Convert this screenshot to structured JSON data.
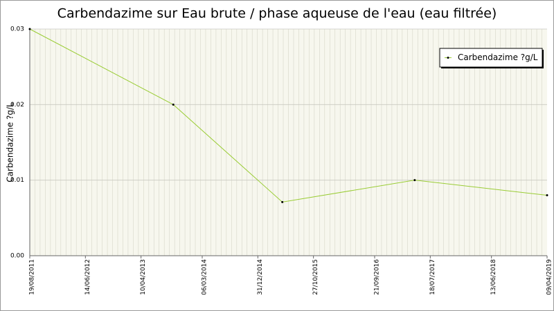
{
  "chart_data": {
    "type": "line",
    "title": "Carbendazime sur Eau brute / phase aqueuse de l'eau (eau filtrée)",
    "y_label": "Carbendazime ?g/L",
    "x": [
      "2011-08-19",
      "2013-10-01",
      "2015-05-12",
      "2017-04-25",
      "2019-04-09"
    ],
    "series": [
      {
        "name": "Carbendazime ?g/L",
        "color": "#99cc33",
        "values": [
          0.03,
          0.02,
          0.0071,
          0.01,
          0.008
        ]
      }
    ],
    "xlim": [
      "2011-08-19",
      "2019-04-09"
    ],
    "xticks": [
      {
        "value": "2011-08-19",
        "label": "19/08/2011"
      },
      {
        "value": "2012-06-14",
        "label": "14/06/2012"
      },
      {
        "value": "2013-04-10",
        "label": "10/04/2013"
      },
      {
        "value": "2014-03-06",
        "label": "06/03/2014"
      },
      {
        "value": "2014-12-31",
        "label": "31/12/2014"
      },
      {
        "value": "2015-10-27",
        "label": "27/10/2015"
      },
      {
        "value": "2016-09-21",
        "label": "21/09/2016"
      },
      {
        "value": "2017-07-18",
        "label": "18/07/2017"
      },
      {
        "value": "2018-06-13",
        "label": "13/06/2018"
      },
      {
        "value": "2019-04-09",
        "label": "09/04/2019"
      }
    ],
    "ylim": [
      0,
      0.03
    ],
    "yticks": [
      {
        "value": 0,
        "label": "0.00"
      },
      0.01,
      0.02,
      0.03
    ],
    "grid": true,
    "legend": "top-right"
  }
}
